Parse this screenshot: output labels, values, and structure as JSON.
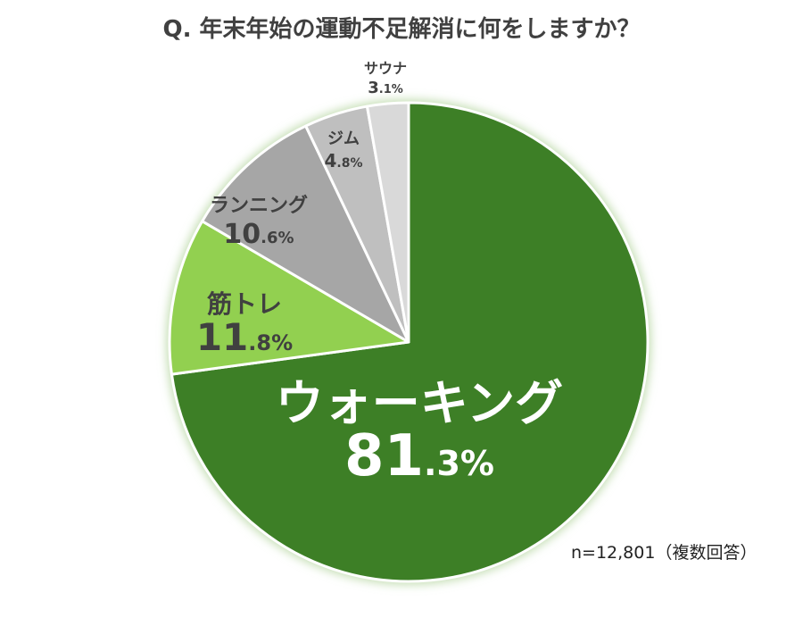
{
  "chart_data": {
    "type": "pie",
    "title": "Q. 年末年始の運動不足解消に何をしますか？",
    "unit": "%",
    "slices": [
      {
        "label": "ウォーキング",
        "value": 81.3,
        "int": "81",
        "dec": ".3%",
        "color": "#3d7f26"
      },
      {
        "label": "筋トレ",
        "value": 11.8,
        "int": "11",
        "dec": ".8%",
        "color": "#92d050"
      },
      {
        "label": "ランニング",
        "value": 10.6,
        "int": "10",
        "dec": ".6%",
        "color": "#a6a6a6"
      },
      {
        "label": "ジム",
        "value": 4.8,
        "int": "4",
        "dec": ".8%",
        "color": "#bfbfbf"
      },
      {
        "label": "サウナ",
        "value": 3.1,
        "int": "3",
        "dec": ".1%",
        "color": "#d9d9d9"
      }
    ],
    "note": "n=12,801（複数回答）"
  }
}
